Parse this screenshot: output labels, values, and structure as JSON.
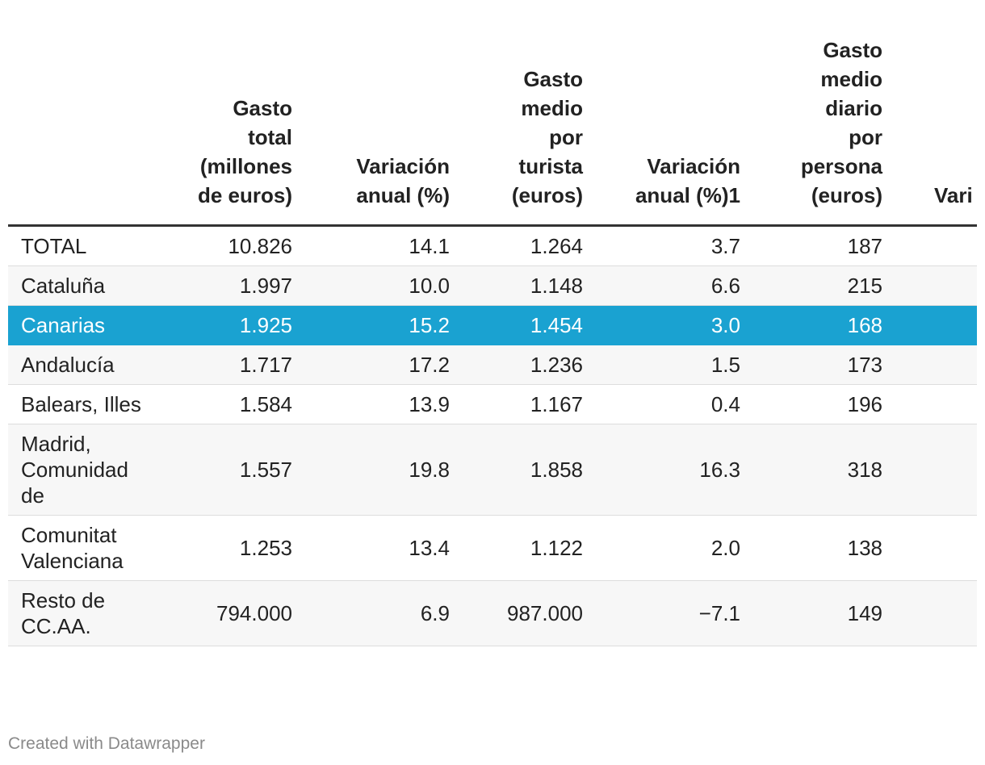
{
  "table": {
    "columns": [
      "",
      "Gasto total (millones de euros)",
      "Variación anual (%)",
      "Gasto medio por turista (euros)",
      "Variación anual (%)1",
      "Gasto medio diario por persona (euros)",
      "Vari"
    ],
    "rows": [
      [
        "TOTAL",
        "10.826",
        "14.1",
        "1.264",
        "3.7",
        "187"
      ],
      [
        "Cataluña",
        "1.997",
        "10.0",
        "1.148",
        "6.6",
        "215"
      ],
      [
        "Canarias",
        "1.925",
        "15.2",
        "1.454",
        "3.0",
        "168"
      ],
      [
        "Andalucía",
        "1.717",
        "17.2",
        "1.236",
        "1.5",
        "173"
      ],
      [
        "Balears, Illes",
        "1.584",
        "13.9",
        "1.167",
        "0.4",
        "196"
      ],
      [
        "Madrid, Comunidad de",
        "1.557",
        "19.8",
        "1.858",
        "16.3",
        "318"
      ],
      [
        "Comunitat Valenciana",
        "1.253",
        "13.4",
        "1.122",
        "2.0",
        "138"
      ],
      [
        "Resto de CC.AA.",
        "794.000",
        "6.9",
        "987.000",
        "−7.1",
        "149"
      ]
    ]
  },
  "footer": "Created with Datawrapper"
}
